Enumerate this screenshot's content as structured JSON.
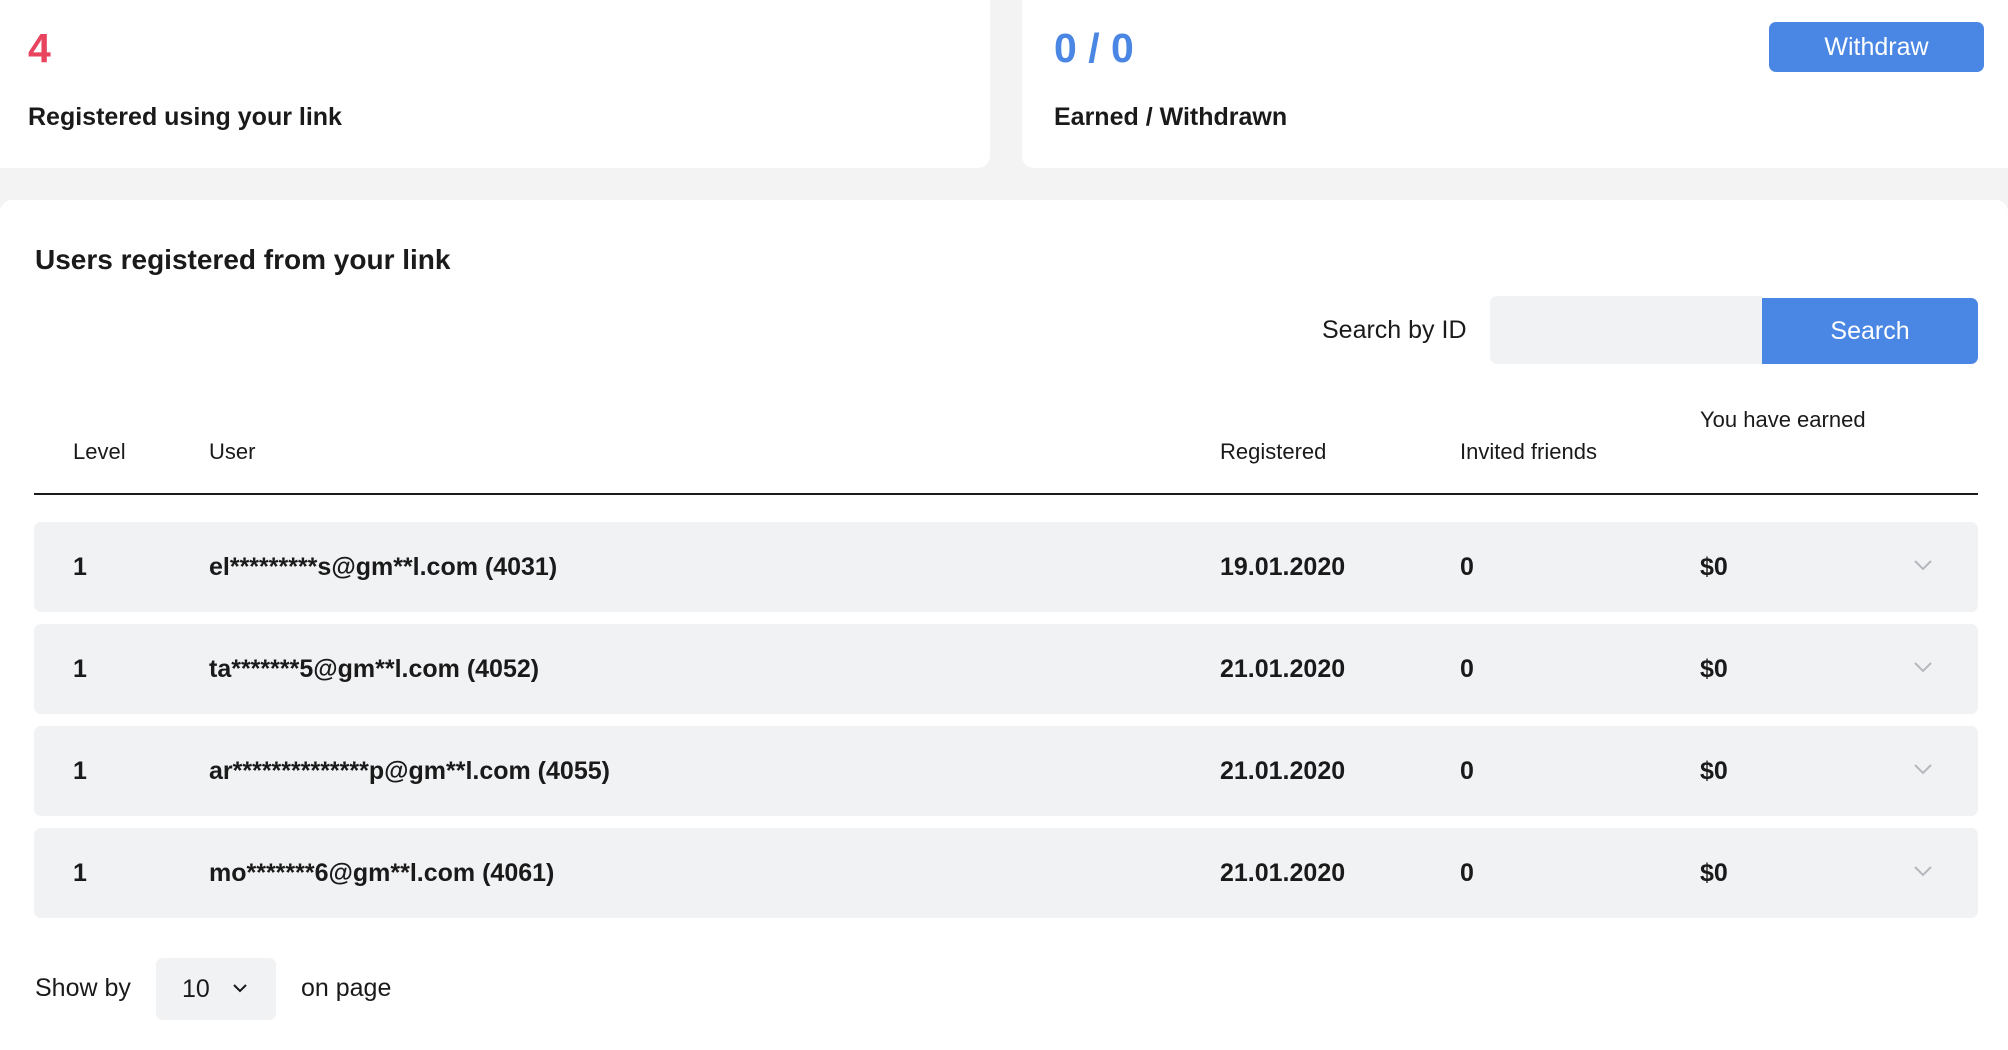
{
  "stats": {
    "registered_count": "4",
    "registered_label": "Registered using your link",
    "earned_withdrawn_value": "0 / 0",
    "earned_withdrawn_label": "Earned / Withdrawn",
    "withdraw_label": "Withdraw"
  },
  "users_panel": {
    "title": "Users registered from your link",
    "search_label": "Search by ID",
    "search_value": "",
    "search_button": "Search"
  },
  "table": {
    "headers": {
      "level": "Level",
      "user": "User",
      "registered": "Registered",
      "invited": "Invited friends",
      "earned": "You have earned"
    },
    "rows": [
      {
        "level": "1",
        "user": "el*********s@gm**l.com (4031)",
        "registered": "19.01.2020",
        "invited": "0",
        "earned": "$0"
      },
      {
        "level": "1",
        "user": "ta*******5@gm**l.com (4052)",
        "registered": "21.01.2020",
        "invited": "0",
        "earned": "$0"
      },
      {
        "level": "1",
        "user": "ar**************p@gm**l.com (4055)",
        "registered": "21.01.2020",
        "invited": "0",
        "earned": "$0"
      },
      {
        "level": "1",
        "user": "mo*******6@gm**l.com (4061)",
        "registered": "21.01.2020",
        "invited": "0",
        "earned": "$0"
      }
    ]
  },
  "pagination": {
    "show_by_label": "Show by",
    "page_size": "10",
    "on_page_label": "on page"
  },
  "colors": {
    "accent_blue": "#4a86e3",
    "accent_red": "#e8435f",
    "row_background": "#f1f2f4",
    "page_background": "#f3f3f3"
  },
  "icons": {
    "row_expand": "chevron-down-icon",
    "select_dropdown": "chevron-down-icon"
  }
}
